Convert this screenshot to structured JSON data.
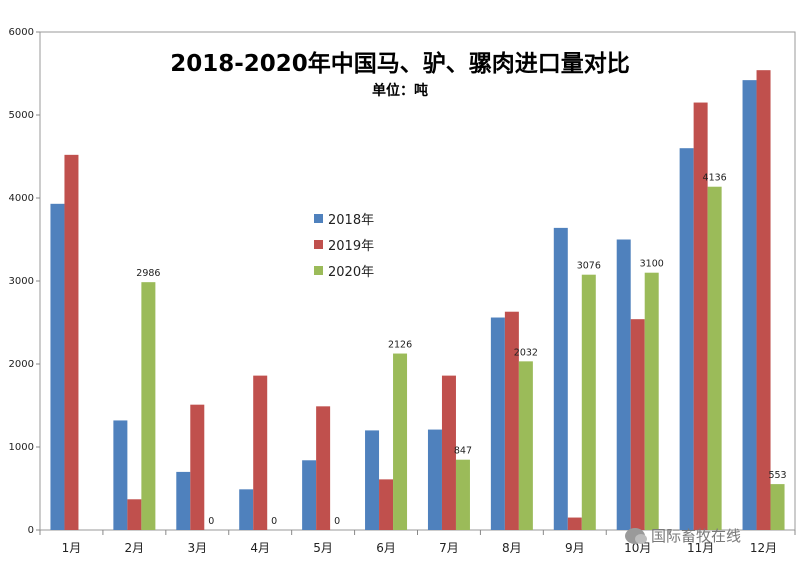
{
  "chart_data": {
    "type": "bar",
    "title": "2018-2020年中国马、驴、骡肉进口量对比",
    "subtitle": "单位：吨",
    "xlabel": "",
    "ylabel": "",
    "ylim": [
      0,
      6000
    ],
    "yticks": [
      0,
      1000,
      2000,
      3000,
      4000,
      5000,
      6000
    ],
    "categories": [
      "1月",
      "2月",
      "3月",
      "4月",
      "5月",
      "6月",
      "7月",
      "8月",
      "9月",
      "10月",
      "11月",
      "12月"
    ],
    "series": [
      {
        "name": "2018年",
        "color": "#4f81bd",
        "values": [
          3930,
          1320,
          700,
          490,
          840,
          1200,
          1210,
          2560,
          3640,
          3500,
          4600,
          5420
        ]
      },
      {
        "name": "2019年",
        "color": "#c0504d",
        "values": [
          4520,
          370,
          1510,
          1860,
          1490,
          610,
          1860,
          2630,
          150,
          2540,
          5150,
          5540
        ]
      },
      {
        "name": "2020年",
        "color": "#9bbb59",
        "values": [
          null,
          2986,
          0,
          0,
          0,
          2126,
          847,
          2032,
          3076,
          3100,
          4136,
          553
        ],
        "labels": [
          "",
          "2986",
          "0",
          "0",
          "0",
          "2126",
          "847",
          "2032",
          "3076",
          "3100",
          "4136",
          "553"
        ]
      }
    ],
    "legend_position": "center-left",
    "grid": false
  },
  "watermark": {
    "text": "国际畜牧在线",
    "icon": "wechat-icon"
  }
}
